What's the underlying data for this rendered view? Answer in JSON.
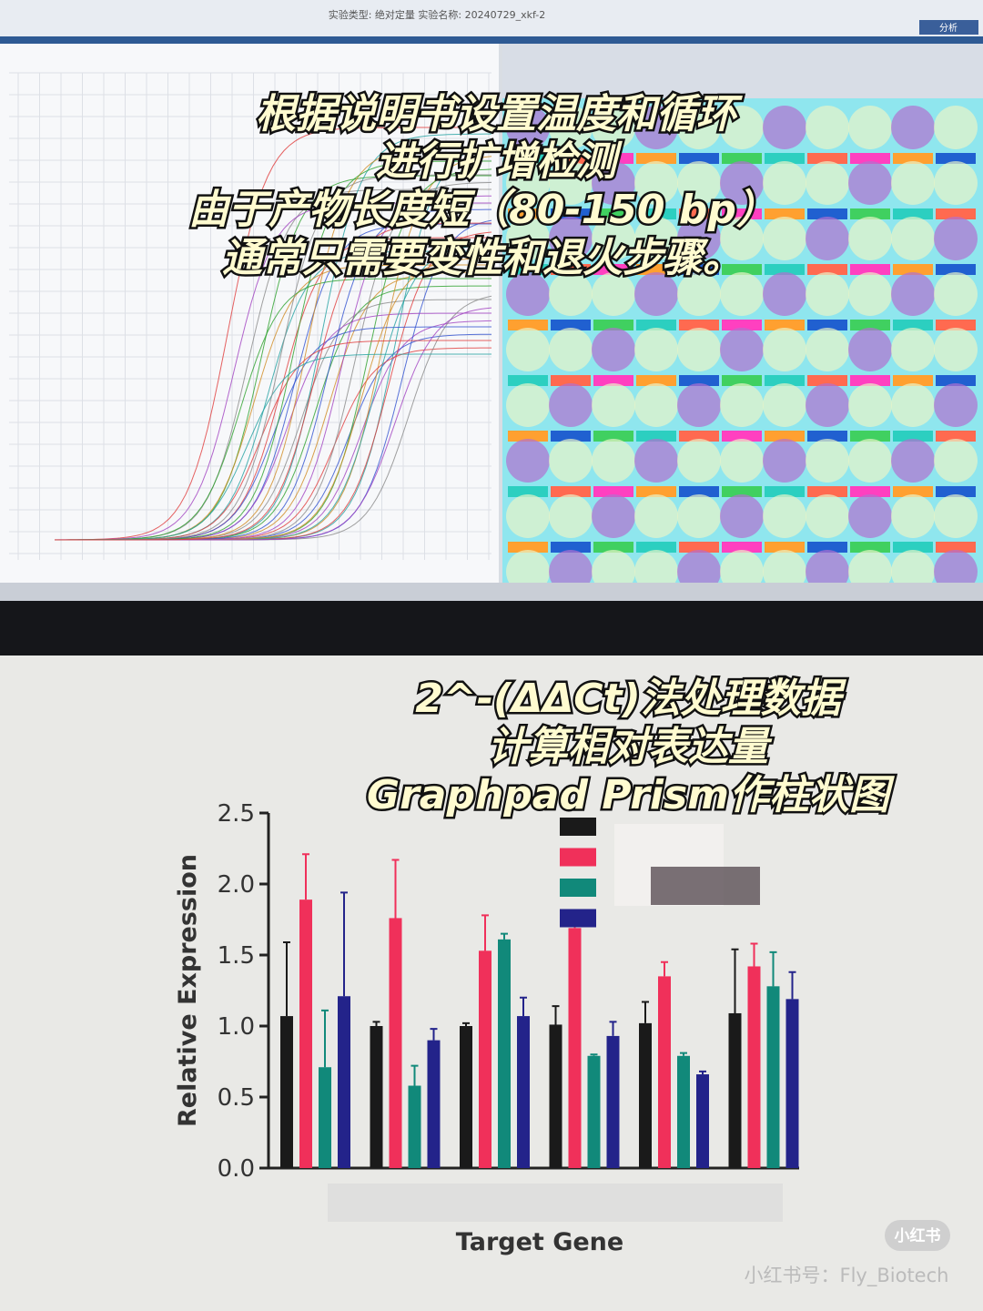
{
  "screen": {
    "header": "实验类型: 绝对定量   实验名称: 20240729_xkf-2",
    "button": "分析"
  },
  "overlay_top": [
    "根据说明书设置温度和循环",
    "进行扩增检测",
    "由于产物长度短（80-150 bp）",
    "通常只需要变性和退火步骤。"
  ],
  "overlay_bottom": [
    "2^-(ΔΔCt)法处理数据",
    "计算相对表达量",
    "Graphpad Prism作柱状图"
  ],
  "chart_data": {
    "type": "bar",
    "y_label": "Relative Expression",
    "x_label": "Target Gene",
    "categories": [
      null,
      null,
      null,
      null,
      null,
      null
    ],
    "series": [
      {
        "color": "#1a1a1a",
        "values": [
          1.07,
          1.0,
          1.0,
          1.01,
          1.02,
          1.09
        ],
        "errors": [
          0.52,
          0.03,
          0.02,
          0.13,
          0.15,
          0.45
        ]
      },
      {
        "color": "#f0305a",
        "values": [
          1.89,
          1.76,
          1.53,
          1.69,
          1.35,
          1.42
        ],
        "errors": [
          0.32,
          0.41,
          0.25,
          0.07,
          0.1,
          0.16
        ]
      },
      {
        "color": "#11897a",
        "values": [
          0.71,
          0.58,
          1.61,
          0.79,
          0.79,
          1.28
        ],
        "errors": [
          0.4,
          0.14,
          0.04,
          0.01,
          0.02,
          0.24
        ]
      },
      {
        "color": "#23238a",
        "values": [
          1.21,
          0.9,
          1.07,
          0.93,
          0.66,
          1.19
        ],
        "errors": [
          0.73,
          0.08,
          0.13,
          0.1,
          0.02,
          0.19
        ]
      }
    ],
    "ylim": [
      0,
      2.5
    ],
    "yticks": [
      {
        "value": 0,
        "label": "0.0"
      },
      0.5,
      {
        "value": 1,
        "label": "1.0"
      },
      1.5,
      {
        "value": 2,
        "label": "2.0"
      },
      2.5
    ]
  },
  "watermark": {
    "logo": "小红书",
    "account": "小红书号：Fly_Biotech"
  }
}
